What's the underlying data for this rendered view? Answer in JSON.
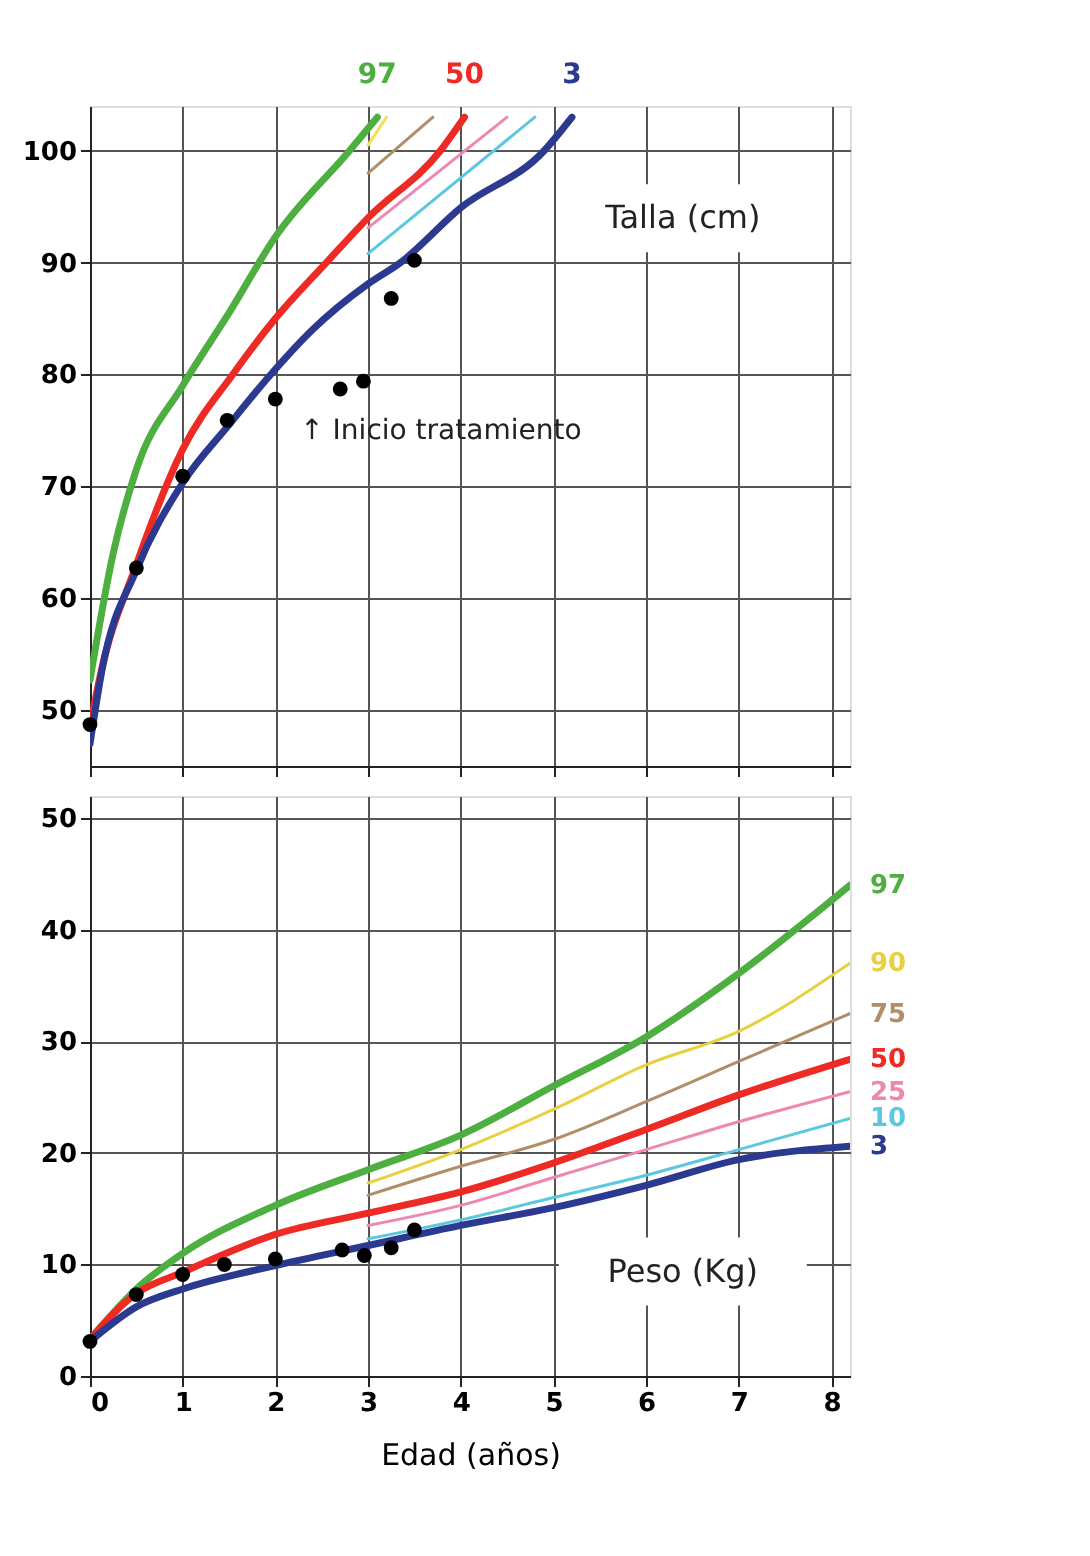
{
  "chart_data": [
    {
      "type": "line",
      "title": "Talla (cm)",
      "xlim": [
        0,
        8.2
      ],
      "xticks": [
        0,
        1,
        2,
        3,
        4,
        5,
        6,
        7,
        8
      ],
      "ylim": [
        45,
        104
      ],
      "yticks": [
        50,
        60,
        70,
        80,
        90,
        100
      ],
      "grid": true,
      "tick_labels": "y",
      "line_style": "solid",
      "annotations": [
        {
          "text": "↑ Inicio tratamiento",
          "x": 2.7,
          "y": 78.7
        }
      ],
      "series": [
        {
          "name": "97",
          "color": "#4caf3f",
          "x": [
            0,
            0.25,
            0.5,
            1,
            1.5,
            2,
            2.8,
            3.1
          ],
          "values": [
            52.7,
            64,
            71.5,
            79,
            85.5,
            92.3,
            100,
            103
          ]
        },
        {
          "name": "50",
          "color": "#ee2a24",
          "x": [
            0,
            0.1,
            0.5,
            1,
            1.54,
            2,
            2.55,
            3,
            3.78,
            4.04
          ],
          "values": [
            48.5,
            52.7,
            63,
            73.3,
            80,
            85,
            90,
            94,
            100,
            103
          ]
        },
        {
          "name": "3",
          "color": "#2b3990",
          "x": [
            0,
            0.13,
            0.5,
            1,
            1.5,
            1.95,
            2.4,
            3,
            3.35,
            4,
            4.9,
            5.2
          ],
          "values": [
            47,
            53.6,
            62.5,
            70.3,
            75.5,
            80,
            84,
            88.1,
            90,
            94.9,
            100,
            103
          ]
        },
        {
          "color": "#f2e05a",
          "x": [
            3,
            3.2
          ],
          "values": [
            100.5,
            103
          ]
        },
        {
          "color": "#b08e6a",
          "x": [
            3,
            3.7
          ],
          "values": [
            98,
            103
          ]
        },
        {
          "color": "#ee88b0",
          "x": [
            3,
            4.5
          ],
          "values": [
            93.1,
            103
          ]
        },
        {
          "color": "#5bc8e0",
          "x": [
            3,
            4.8
          ],
          "values": [
            90.8,
            103
          ]
        },
        {
          "type": "scatter",
          "marker": "circle",
          "color": "#000000",
          "x": [
            0,
            0.5,
            1,
            1.48,
            2,
            2.7,
            2.95,
            3.25,
            3.5
          ],
          "values": [
            48.7,
            62.7,
            70.9,
            75.9,
            77.8,
            78.7,
            79.4,
            86.8,
            90.2
          ]
        }
      ]
    },
    {
      "type": "line",
      "title": "Peso (Kg)",
      "xlabel": "Edad (años)",
      "xlim": [
        0,
        8.2
      ],
      "xticks": [
        0,
        1,
        2,
        3,
        4,
        5,
        6,
        7,
        8
      ],
      "ylim": [
        0,
        52
      ],
      "yticks": [
        0,
        10,
        20,
        30,
        40,
        50
      ],
      "grid": true,
      "line_style": "solid",
      "series": [
        {
          "name": "97",
          "color": "#4caf3f",
          "x": [
            0,
            0.5,
            1,
            2,
            3,
            4,
            5,
            6,
            7,
            8.2
          ],
          "values": [
            3.3,
            7.8,
            11,
            15.3,
            18.5,
            21.6,
            26,
            30.4,
            36.1,
            44
          ]
        },
        {
          "name": "90",
          "color": "#e8d040",
          "x": [
            3,
            4,
            5,
            6,
            7,
            8.2
          ],
          "values": [
            17.3,
            20.3,
            23.9,
            27.9,
            30.9,
            37
          ]
        },
        {
          "name": "75",
          "color": "#b08e6a",
          "x": [
            3,
            4,
            5,
            6,
            7,
            8.2
          ],
          "values": [
            16.2,
            18.8,
            21.2,
            24.6,
            28.2,
            32.5
          ]
        },
        {
          "name": "50",
          "color": "#ee2a24",
          "x": [
            0,
            0.5,
            1,
            2,
            3,
            4,
            5,
            6,
            7,
            8.2
          ],
          "values": [
            3.3,
            7.4,
            9.3,
            12.7,
            14.6,
            16.5,
            19.1,
            22.1,
            25.2,
            28.4
          ]
        },
        {
          "name": "25",
          "color": "#ee88b0",
          "x": [
            3,
            4,
            5,
            6,
            7,
            8.2
          ],
          "values": [
            13.5,
            15.3,
            17.8,
            20.3,
            22.8,
            25.5
          ]
        },
        {
          "name": "10",
          "color": "#5bc8e0",
          "x": [
            3,
            4,
            5,
            6,
            7,
            8.2
          ],
          "values": [
            12.3,
            14,
            16,
            18,
            20.3,
            23.1
          ]
        },
        {
          "name": "3",
          "color": "#2b3990",
          "x": [
            0,
            0.5,
            1,
            2,
            3,
            4,
            5,
            6,
            7,
            8.2
          ],
          "values": [
            3.1,
            6.2,
            7.8,
            9.9,
            11.7,
            13.5,
            15.1,
            17.1,
            19.4,
            20.6
          ]
        },
        {
          "type": "scatter",
          "marker": "circle",
          "color": "#000000",
          "x": [
            0,
            0.5,
            1,
            1.45,
            2,
            2.72,
            2.96,
            3.25,
            3.5
          ],
          "values": [
            3.1,
            7.3,
            9.1,
            10,
            10.5,
            11.3,
            10.8,
            11.5,
            13.1
          ]
        }
      ]
    }
  ]
}
